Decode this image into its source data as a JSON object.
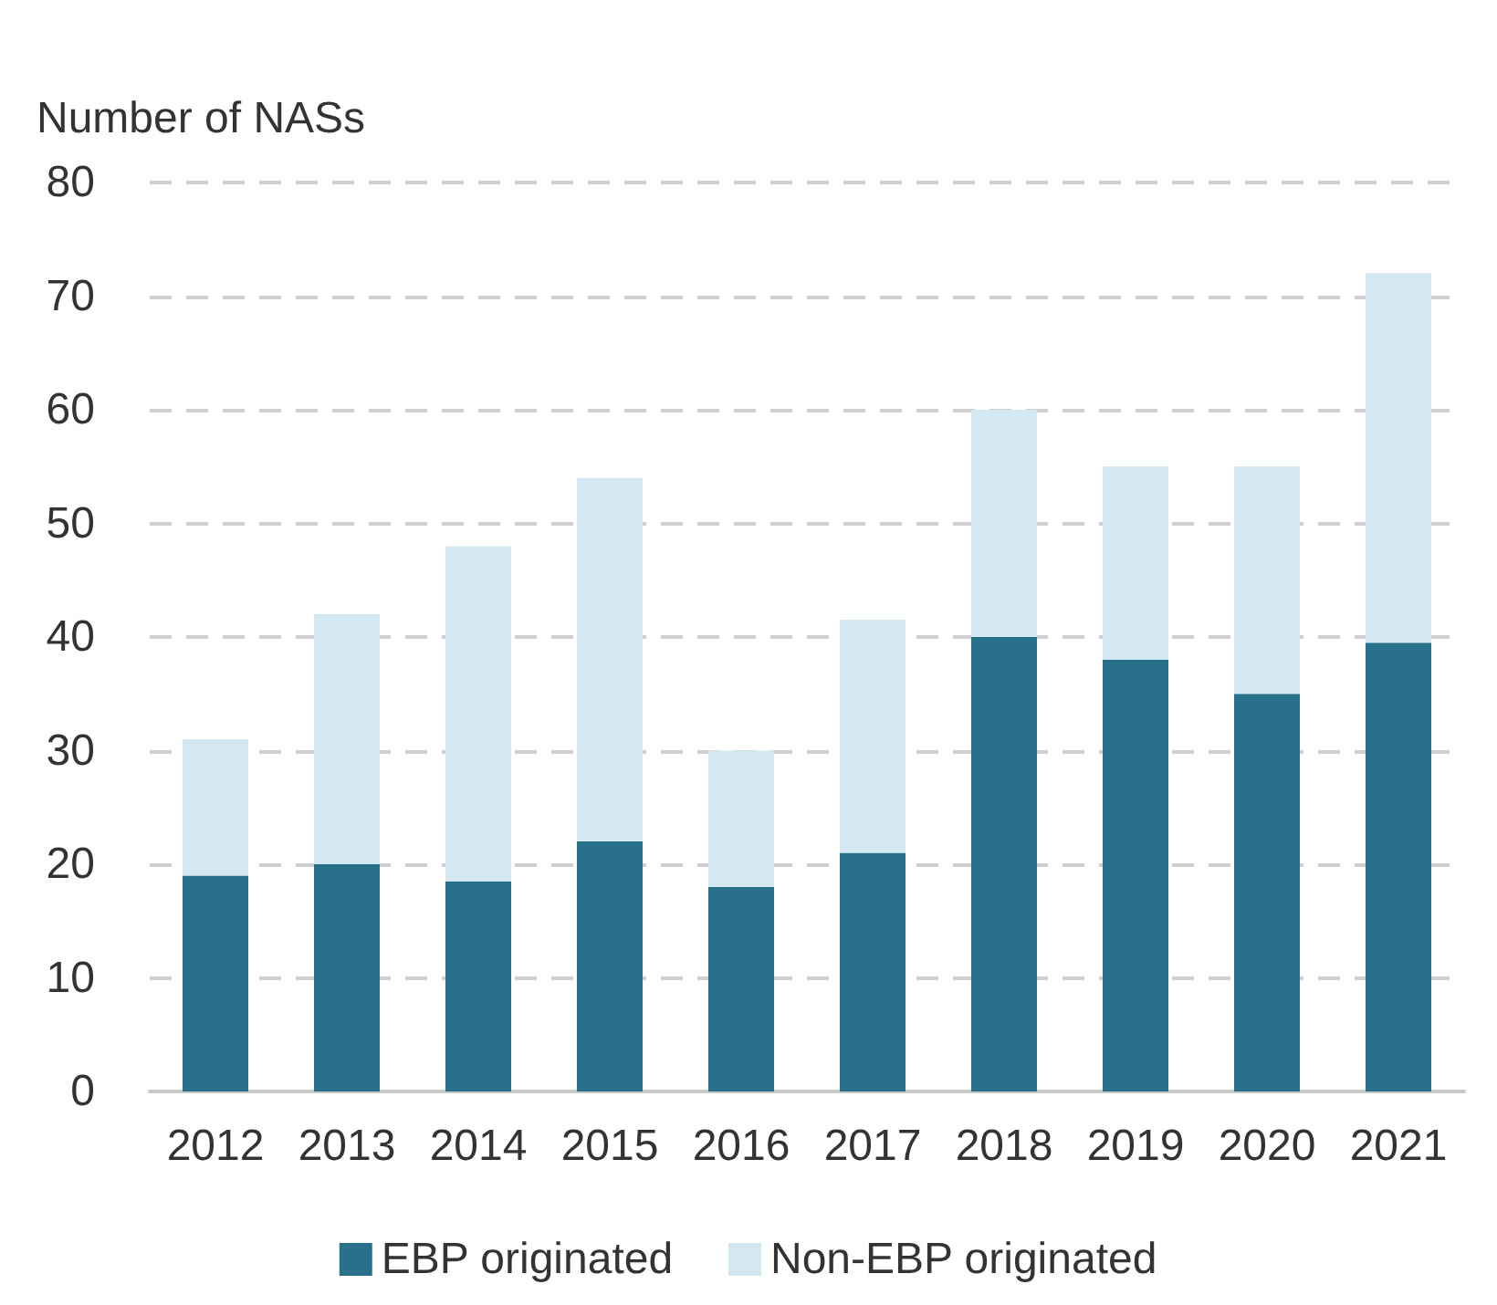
{
  "chart_data": {
    "type": "bar",
    "stacked": true,
    "ylabel": "Number of NASs",
    "categories": [
      "2012",
      "2013",
      "2014",
      "2015",
      "2016",
      "2017",
      "2018",
      "2019",
      "2020",
      "2021"
    ],
    "series": [
      {
        "name": "EBP originated",
        "color": "#29708a",
        "values": [
          19,
          20,
          18.5,
          22,
          18,
          21,
          40,
          38,
          35,
          39.5
        ]
      },
      {
        "name": "Non-EBP originated",
        "color": "#d3e8f0",
        "values": [
          12,
          22,
          29.5,
          32,
          12,
          20.5,
          20,
          17,
          20,
          32.5
        ]
      }
    ],
    "ylim": [
      0,
      80
    ],
    "yticks": [
      0,
      10,
      20,
      30,
      40,
      50,
      60,
      70,
      80
    ],
    "grid": "y",
    "legend": "bottom"
  }
}
